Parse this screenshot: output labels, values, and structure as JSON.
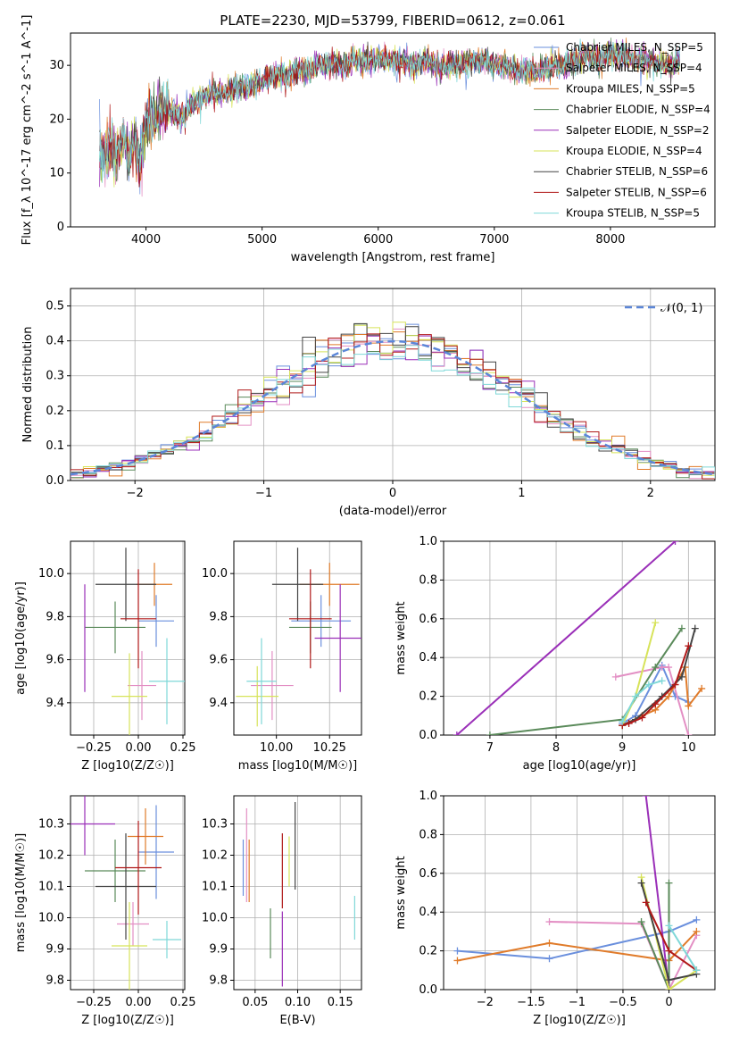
{
  "figure_title": "PLATE=2230, MJD=53799, FIBERID=0612, z=0.061",
  "series_names": [
    "Chabrier MILES, N_SSP=5",
    "Salpeter MILES, N_SSP=4",
    "Kroupa MILES, N_SSP=5",
    "Chabrier ELODIE, N_SSP=4",
    "Salpeter ELODIE, N_SSP=2",
    "Kroupa ELODIE, N_SSP=4",
    "Chabrier STELIB, N_SSP=6",
    "Salpeter STELIB, N_SSP=6",
    "Kroupa STELIB, N_SSP=5"
  ],
  "series_colors": [
    "#6a8fdd",
    "#e38fc4",
    "#e07b2a",
    "#5a8a5a",
    "#9a2fb8",
    "#d7e35a",
    "#444444",
    "#b01818",
    "#7fd8d8"
  ],
  "chart_data": [
    {
      "id": "spectrum",
      "type": "line",
      "xlabel": "wavelength [Angstrom, rest frame]",
      "ylabel": "Flux [f_λ 10^-17 erg cm^-2 s^-1 A^-1]",
      "xlim": [
        3350,
        8900
      ],
      "ylim": [
        0,
        36
      ],
      "xticks": [
        4000,
        5000,
        6000,
        7000,
        8000
      ],
      "yticks": [
        0,
        10,
        20,
        30
      ],
      "legend_position": "right",
      "x": [
        3600,
        3650,
        3700,
        3750,
        3800,
        3850,
        3900,
        3950,
        4000,
        4100,
        4200,
        4300,
        4400,
        4500,
        4600,
        4700,
        4800,
        4900,
        5000,
        5100,
        5200,
        5300,
        5400,
        5500,
        5600,
        5700,
        5800,
        5900,
        6000,
        6100,
        6200,
        6300,
        6400,
        6500,
        6600,
        6700,
        6800,
        6900,
        7000,
        7100,
        7200,
        7300,
        7400,
        7500,
        7600,
        7700,
        7800,
        7900,
        8000,
        8100,
        8200,
        8300,
        8400,
        8500,
        8600
      ],
      "y": [
        14,
        13,
        16,
        12,
        17,
        13,
        16,
        11,
        19,
        21,
        22,
        20,
        23,
        24,
        25,
        25,
        26,
        26,
        27,
        28,
        28,
        29,
        29,
        30,
        30,
        30,
        31,
        31,
        31,
        31,
        31,
        30,
        31,
        30,
        30,
        30,
        31,
        31,
        30,
        30,
        29,
        29,
        29,
        30,
        30,
        31,
        32,
        31,
        32,
        32,
        31,
        31,
        30,
        30,
        31
      ]
    },
    {
      "id": "residuals",
      "type": "histogram",
      "xlabel": "(data-model)/error",
      "ylabel": "Normed distribution",
      "xlim": [
        -2.5,
        2.5
      ],
      "ylim": [
        0,
        0.55
      ],
      "xticks": [
        -2,
        -1,
        0,
        1,
        2
      ],
      "yticks": [
        0.0,
        0.1,
        0.2,
        0.3,
        0.4,
        0.5
      ],
      "legend": [
        "N(0,1)"
      ],
      "legend_position": "top-right",
      "bin_width": 0.1
    },
    {
      "id": "age_vs_Z",
      "type": "errorbar",
      "xlabel": "Z [log10(Z/Z☉)]",
      "ylabel": "age [log10(age/yr)]",
      "xlim": [
        -0.38,
        0.26
      ],
      "ylim": [
        9.25,
        10.15
      ],
      "xticks": [
        -0.25,
        0.0,
        0.25
      ],
      "xtick_labels": [
        "−0.25",
        "0.00",
        "0.25"
      ],
      "yticks": [
        9.4,
        9.6,
        9.8,
        10.0
      ],
      "points": [
        {
          "x": 0.1,
          "xerr": 0.1,
          "y": 9.78,
          "yerr": 0.12
        },
        {
          "x": 0.02,
          "xerr": 0.08,
          "y": 9.48,
          "yerr": 0.16
        },
        {
          "x": 0.09,
          "xerr": 0.1,
          "y": 9.95,
          "yerr": 0.1
        },
        {
          "x": -0.13,
          "xerr": 0.17,
          "y": 9.75,
          "yerr": 0.12
        },
        {
          "x": -0.3,
          "xerr": 0.0,
          "y": 9.7,
          "yerr": 0.25
        },
        {
          "x": -0.05,
          "xerr": 0.1,
          "y": 9.43,
          "yerr": 0.2
        },
        {
          "x": -0.07,
          "xerr": 0.17,
          "y": 9.95,
          "yerr": 0.17
        },
        {
          "x": 0.0,
          "xerr": 0.1,
          "y": 9.79,
          "yerr": 0.23
        },
        {
          "x": 0.16,
          "xerr": 0.1,
          "y": 9.5,
          "yerr": 0.2
        }
      ]
    },
    {
      "id": "age_vs_mass",
      "type": "errorbar",
      "xlabel": "mass [log10(M/M☉)]",
      "ylabel": "",
      "xlim": [
        9.8,
        10.4
      ],
      "ylim": [
        9.25,
        10.15
      ],
      "xticks": [
        10.0,
        10.25
      ],
      "xtick_labels": [
        "10.00",
        "10.25"
      ],
      "yticks": [
        9.4,
        9.6,
        9.8,
        10.0
      ],
      "points": [
        {
          "x": 10.21,
          "xerr": 0.14,
          "y": 9.78,
          "yerr": 0.12
        },
        {
          "x": 9.98,
          "xerr": 0.1,
          "y": 9.48,
          "yerr": 0.16
        },
        {
          "x": 10.25,
          "xerr": 0.14,
          "y": 9.95,
          "yerr": 0.1
        },
        {
          "x": 10.16,
          "xerr": 0.1,
          "y": 9.75,
          "yerr": 0.12
        },
        {
          "x": 10.3,
          "xerr": 0.12,
          "y": 9.7,
          "yerr": 0.25
        },
        {
          "x": 9.91,
          "xerr": 0.1,
          "y": 9.43,
          "yerr": 0.14
        },
        {
          "x": 10.1,
          "xerr": 0.12,
          "y": 9.95,
          "yerr": 0.17
        },
        {
          "x": 10.16,
          "xerr": 0.1,
          "y": 9.79,
          "yerr": 0.23
        },
        {
          "x": 9.93,
          "xerr": 0.07,
          "y": 9.5,
          "yerr": 0.2
        }
      ]
    },
    {
      "id": "weight_vs_age",
      "type": "line",
      "xlabel": "age [log10(age/yr)]",
      "ylabel": "mass weight",
      "xlim": [
        6.3,
        10.4
      ],
      "ylim": [
        0.0,
        1.0
      ],
      "xticks": [
        7,
        8,
        9,
        10
      ],
      "yticks": [
        0.0,
        0.2,
        0.4,
        0.6,
        0.8,
        1.0
      ],
      "series": [
        {
          "name": "Chabrier MILES",
          "x": [
            9.0,
            9.2,
            9.6,
            9.8,
            10.0
          ],
          "y": [
            0.06,
            0.1,
            0.36,
            0.2,
            0.17
          ]
        },
        {
          "name": "Salpeter MILES",
          "x": [
            8.9,
            9.6,
            9.7,
            10.0
          ],
          "y": [
            0.3,
            0.35,
            0.35,
            0.0
          ]
        },
        {
          "name": "Kroupa MILES",
          "x": [
            9.0,
            9.3,
            9.5,
            9.7,
            9.95,
            10.0,
            10.2
          ],
          "y": [
            0.05,
            0.1,
            0.13,
            0.2,
            0.35,
            0.15,
            0.24
          ]
        },
        {
          "name": "Chabrier ELODIE",
          "x": [
            7.0,
            9.0,
            9.5,
            9.9
          ],
          "y": [
            0.0,
            0.08,
            0.35,
            0.55
          ]
        },
        {
          "name": "Salpeter ELODIE",
          "x": [
            6.5,
            9.8
          ],
          "y": [
            0.0,
            1.0
          ]
        },
        {
          "name": "Kroupa ELODIE",
          "x": [
            9.0,
            9.2,
            9.5
          ],
          "y": [
            0.05,
            0.2,
            0.58
          ]
        },
        {
          "name": "Chabrier STELIB",
          "x": [
            9.0,
            9.2,
            9.6,
            9.9,
            10.1
          ],
          "y": [
            0.05,
            0.08,
            0.2,
            0.3,
            0.55
          ]
        },
        {
          "name": "Salpeter STELIB",
          "x": [
            9.0,
            9.1,
            9.3,
            9.5,
            9.8,
            10.0
          ],
          "y": [
            0.05,
            0.06,
            0.09,
            0.16,
            0.26,
            0.46
          ]
        },
        {
          "name": "Kroupa STELIB",
          "x": [
            9.0,
            9.2,
            9.4,
            9.6
          ],
          "y": [
            0.07,
            0.2,
            0.26,
            0.28
          ]
        }
      ]
    },
    {
      "id": "mass_vs_Z",
      "type": "errorbar",
      "xlabel": "Z [log10(Z/Z☉)]",
      "ylabel": "mass [log10(M/M☉)]",
      "xlim": [
        -0.38,
        0.26
      ],
      "ylim": [
        9.77,
        10.39
      ],
      "xticks": [
        -0.25,
        0.0,
        0.25
      ],
      "xtick_labels": [
        "−0.25",
        "0.00",
        "0.25"
      ],
      "yticks": [
        9.8,
        9.9,
        10.0,
        10.1,
        10.2,
        10.3
      ],
      "points": [
        {
          "x": 0.1,
          "xerr": 0.1,
          "y": 10.21,
          "yerr": 0.15
        },
        {
          "x": -0.03,
          "xerr": 0.09,
          "y": 9.98,
          "yerr": 0.07
        },
        {
          "x": 0.04,
          "xerr": 0.1,
          "y": 10.26,
          "yerr": 0.09
        },
        {
          "x": -0.13,
          "xerr": 0.17,
          "y": 10.15,
          "yerr": 0.1
        },
        {
          "x": -0.3,
          "xerr": 0.17,
          "y": 10.3,
          "yerr": 0.1
        },
        {
          "x": -0.05,
          "xerr": 0.1,
          "y": 9.91,
          "yerr": 0.14
        },
        {
          "x": -0.07,
          "xerr": 0.17,
          "y": 10.1,
          "yerr": 0.17
        },
        {
          "x": 0.0,
          "xerr": 0.13,
          "y": 10.16,
          "yerr": 0.15
        },
        {
          "x": 0.16,
          "xerr": 0.08,
          "y": 9.93,
          "yerr": 0.06
        }
      ]
    },
    {
      "id": "mass_vs_EBV",
      "type": "errorbar",
      "xlabel": "E(B-V)",
      "ylabel": "",
      "xlim": [
        0.025,
        0.175
      ],
      "ylim": [
        9.77,
        10.39
      ],
      "xticks": [
        0.05,
        0.1,
        0.15
      ],
      "xtick_labels": [
        "0.05",
        "0.10",
        "0.15"
      ],
      "yticks": [
        9.8,
        9.9,
        10.0,
        10.1,
        10.2,
        10.3
      ],
      "points": [
        {
          "x": 0.036,
          "y": 10.16,
          "yerr": 0.09
        },
        {
          "x": 0.04,
          "y": 10.2,
          "yerr": 0.15
        },
        {
          "x": 0.043,
          "y": 10.15,
          "yerr": 0.1
        },
        {
          "x": 0.068,
          "y": 9.95,
          "yerr": 0.08
        },
        {
          "x": 0.082,
          "y": 9.9,
          "yerr": 0.12
        },
        {
          "x": 0.09,
          "y": 10.18,
          "yerr": 0.08
        },
        {
          "x": 0.097,
          "y": 10.23,
          "yerr": 0.14
        },
        {
          "x": 0.082,
          "y": 10.15,
          "yerr": 0.12
        },
        {
          "x": 0.167,
          "y": 10.0,
          "yerr": 0.07
        }
      ]
    },
    {
      "id": "weight_vs_Z",
      "type": "line",
      "xlabel": "Z [log10(Z/Z☉)]",
      "ylabel": "mass weight",
      "xlim": [
        -2.45,
        0.5
      ],
      "ylim": [
        0.0,
        1.0
      ],
      "xticks": [
        -2.0,
        -1.5,
        -1.0,
        -0.5,
        0.0
      ],
      "yticks": [
        0.0,
        0.2,
        0.4,
        0.6,
        0.8,
        1.0
      ],
      "series": [
        {
          "name": "Chabrier MILES",
          "x": [
            -2.3,
            -1.3,
            0.0,
            0.3
          ],
          "y": [
            0.2,
            0.16,
            0.3,
            0.36
          ]
        },
        {
          "name": "Salpeter MILES",
          "x": [
            -1.3,
            -0.3,
            0.0,
            0.3
          ],
          "y": [
            0.35,
            0.34,
            0.0,
            0.28
          ]
        },
        {
          "name": "Kroupa MILES",
          "x": [
            -2.3,
            -1.3,
            0.0,
            0.3
          ],
          "y": [
            0.15,
            0.24,
            0.15,
            0.3
          ]
        },
        {
          "name": "Chabrier ELODIE",
          "x": [
            0.0,
            0.0,
            -0.3
          ],
          "y": [
            0.55,
            0.0,
            0.35
          ]
        },
        {
          "name": "Salpeter ELODIE",
          "x": [
            -0.25,
            0.0
          ],
          "y": [
            1.0,
            0.0
          ]
        },
        {
          "name": "Kroupa ELODIE",
          "x": [
            -0.3,
            0.0,
            0.3
          ],
          "y": [
            0.58,
            0.0,
            0.1
          ]
        },
        {
          "name": "Chabrier STELIB",
          "x": [
            -0.3,
            0.0,
            0.3
          ],
          "y": [
            0.55,
            0.05,
            0.08
          ]
        },
        {
          "name": "Salpeter STELIB",
          "x": [
            -0.25,
            0.0,
            0.3
          ],
          "y": [
            0.45,
            0.2,
            0.1
          ]
        },
        {
          "name": "Kroupa STELIB",
          "x": [
            0.0,
            0.3
          ],
          "y": [
            0.33,
            0.1
          ]
        }
      ]
    }
  ]
}
